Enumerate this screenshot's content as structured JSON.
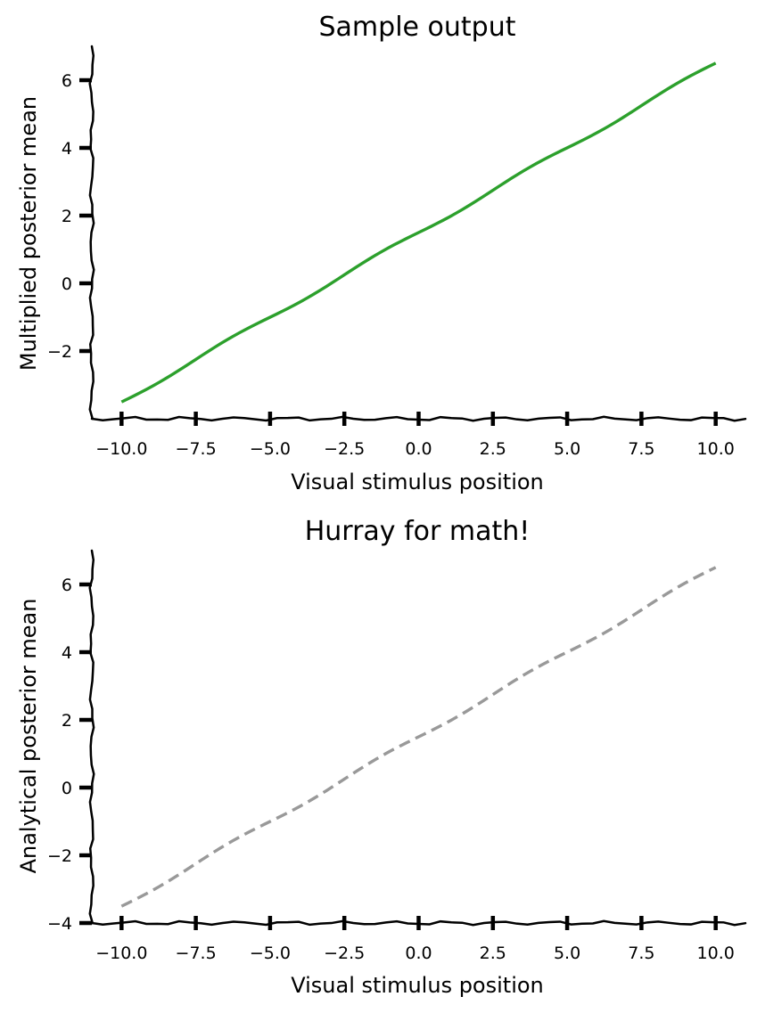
{
  "chart_data": [
    {
      "type": "line",
      "title": "Sample output",
      "xlabel": "Visual stimulus position",
      "ylabel": "Multiplied posterior mean",
      "xlim": [
        -11,
        11
      ],
      "ylim": [
        -4,
        7
      ],
      "xticks": [
        -10,
        -7.5,
        -5,
        -2.5,
        0,
        2.5,
        5,
        7.5,
        10
      ],
      "xtick_labels": [
        "−10.0",
        "−7.5",
        "−5.0",
        "−2.5",
        "0.0",
        "2.5",
        "5.0",
        "7.5",
        "10.0"
      ],
      "yticks": [
        -2,
        0,
        2,
        4,
        6
      ],
      "ytick_labels": [
        "−2",
        "0",
        "2",
        "4",
        "6"
      ],
      "grid": false,
      "series": [
        {
          "color": "#2ca02c",
          "style": "solid",
          "x": [
            -10,
            -7.5,
            -5,
            -2.5,
            0,
            2.5,
            5,
            7.5,
            10
          ],
          "y": [
            -3.5,
            -2.25,
            -1.0,
            0.25,
            1.5,
            2.75,
            4.0,
            5.25,
            6.5
          ]
        }
      ]
    },
    {
      "type": "line",
      "title": "Hurray for math!",
      "xlabel": "Visual stimulus position",
      "ylabel": "Analytical posterior mean",
      "xlim": [
        -11,
        11
      ],
      "ylim": [
        -4,
        7
      ],
      "xticks": [
        -10,
        -7.5,
        -5,
        -2.5,
        0,
        2.5,
        5,
        7.5,
        10
      ],
      "xtick_labels": [
        "−10.0",
        "−7.5",
        "−5.0",
        "−2.5",
        "0.0",
        "2.5",
        "5.0",
        "7.5",
        "10.0"
      ],
      "yticks": [
        -4,
        -2,
        0,
        2,
        4,
        6
      ],
      "ytick_labels": [
        "−4",
        "−2",
        "0",
        "2",
        "4",
        "6"
      ],
      "grid": false,
      "series": [
        {
          "color": "#999999",
          "style": "dashed",
          "x": [
            -10,
            -7.5,
            -5,
            -2.5,
            0,
            2.5,
            5,
            7.5,
            10
          ],
          "y": [
            -3.5,
            -2.25,
            -1.0,
            0.25,
            1.5,
            2.75,
            4.0,
            5.25,
            6.5
          ]
        }
      ]
    }
  ]
}
